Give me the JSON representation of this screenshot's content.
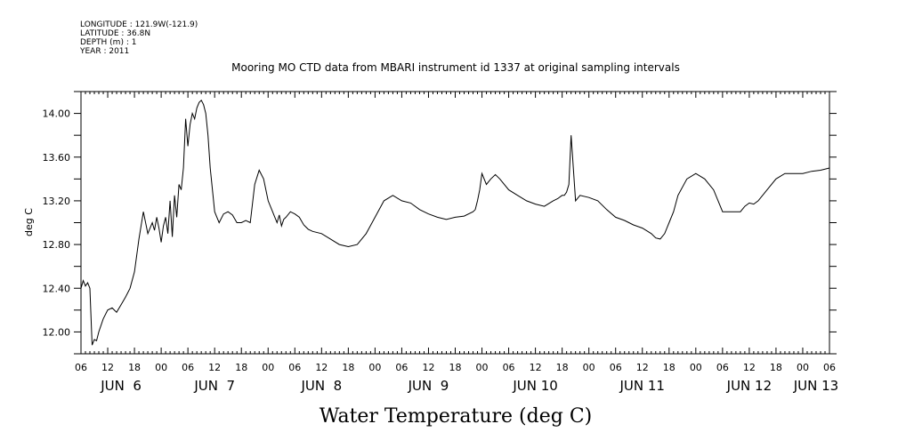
{
  "meta": {
    "longitude": "LONGITUDE : 121.9W(-121.9)",
    "latitude": "LATITUDE : 36.8N",
    "depth": "DEPTH (m) : 1",
    "year": "YEAR : 2011"
  },
  "chart_data": {
    "type": "line",
    "title": "Mooring MO CTD data from MBARI instrument id 1337 at original sampling intervals",
    "xlabel": "Water Temperature (deg C)",
    "ylabel": "deg C",
    "xlim_hours": [
      0,
      168
    ],
    "ylim": [
      11.8,
      14.2
    ],
    "yticks": [
      "12.00",
      "12.40",
      "12.80",
      "13.20",
      "13.60",
      "14.00"
    ],
    "ytick_values": [
      12.0,
      12.4,
      12.8,
      13.2,
      13.6,
      14.0
    ],
    "xtick_labels": [
      "06",
      "12",
      "18",
      "00",
      "06",
      "12",
      "18",
      "00",
      "06",
      "12",
      "18",
      "00",
      "06",
      "12",
      "18",
      "00",
      "06",
      "12",
      "18",
      "00",
      "06",
      "12",
      "18",
      "00",
      "06",
      "12",
      "18",
      "00",
      "06"
    ],
    "day_labels": [
      {
        "label": "JUN  6",
        "hour": 9
      },
      {
        "label": "JUN  7",
        "hour": 30
      },
      {
        "label": "JUN  8",
        "hour": 54
      },
      {
        "label": "JUN  9",
        "hour": 78
      },
      {
        "label": "JUN 10",
        "hour": 102
      },
      {
        "label": "JUN 11",
        "hour": 126
      },
      {
        "label": "JUN 12",
        "hour": 150
      },
      {
        "label": "JUN 13",
        "hour": 165
      }
    ],
    "series": [
      {
        "name": "Water Temperature",
        "x": [
          0,
          0.5,
          1,
          1.5,
          2,
          2.5,
          3,
          3.5,
          4,
          5,
          6,
          7,
          8,
          9,
          10,
          11,
          12,
          13,
          14,
          15,
          16,
          16.5,
          17,
          17.5,
          18,
          18.5,
          19,
          19.5,
          20,
          20.5,
          21,
          21.5,
          22,
          22.5,
          23,
          23.5,
          24,
          24.5,
          25,
          25.5,
          26,
          26.5,
          27,
          27.5,
          28,
          28.5,
          29,
          29.5,
          30,
          30.5,
          31,
          32,
          33,
          34,
          35,
          36,
          37,
          38,
          39,
          40,
          41,
          42,
          43,
          43.5,
          44,
          44.5,
          45,
          45.5,
          46,
          47,
          48,
          49,
          50,
          51,
          52,
          54,
          56,
          58,
          60,
          62,
          64,
          66,
          68,
          70,
          72,
          74,
          76,
          78,
          80,
          82,
          84,
          86,
          88,
          88.5,
          89,
          89.5,
          90,
          91,
          92,
          93,
          94,
          96,
          98,
          100,
          102,
          104,
          106,
          107,
          108,
          108.5,
          109,
          109.5,
          110,
          111,
          112,
          114,
          116,
          118,
          120,
          122,
          124,
          126,
          128,
          129,
          130,
          131,
          132,
          133,
          134,
          136,
          138,
          140,
          142,
          144,
          146,
          148,
          149,
          150,
          151,
          152,
          154,
          156,
          158,
          160,
          162,
          164,
          166,
          168
        ],
        "y": [
          12.4,
          12.47,
          12.42,
          12.45,
          12.4,
          11.88,
          11.93,
          11.92,
          12.0,
          12.12,
          12.2,
          12.22,
          12.18,
          12.25,
          12.32,
          12.4,
          12.55,
          12.85,
          13.1,
          12.9,
          13.0,
          12.93,
          13.05,
          12.95,
          12.82,
          12.97,
          13.05,
          12.9,
          13.2,
          12.87,
          13.25,
          13.05,
          13.35,
          13.3,
          13.5,
          13.95,
          13.7,
          13.9,
          14.0,
          13.95,
          14.05,
          14.1,
          14.12,
          14.08,
          14.0,
          13.8,
          13.5,
          13.3,
          13.1,
          13.05,
          13.0,
          13.08,
          13.1,
          13.07,
          13.0,
          13.0,
          13.02,
          13.0,
          13.35,
          13.48,
          13.4,
          13.2,
          13.1,
          13.05,
          13.0,
          13.07,
          12.97,
          13.03,
          13.05,
          13.1,
          13.08,
          13.05,
          12.98,
          12.94,
          12.92,
          12.9,
          12.85,
          12.8,
          12.78,
          12.8,
          12.9,
          13.05,
          13.2,
          13.25,
          13.2,
          13.18,
          13.12,
          13.08,
          13.05,
          13.03,
          13.05,
          13.06,
          13.1,
          13.12,
          13.2,
          13.3,
          13.45,
          13.35,
          13.4,
          13.44,
          13.4,
          13.3,
          13.25,
          13.2,
          13.17,
          13.15,
          13.2,
          13.22,
          13.25,
          13.25,
          13.28,
          13.35,
          13.8,
          13.2,
          13.25,
          13.23,
          13.2,
          13.12,
          13.05,
          13.02,
          12.98,
          12.95,
          12.9,
          12.86,
          12.85,
          12.9,
          13.0,
          13.1,
          13.25,
          13.4,
          13.45,
          13.4,
          13.3,
          13.1,
          13.1,
          13.1,
          13.15,
          13.18,
          13.17,
          13.2,
          13.3,
          13.4,
          13.45,
          13.45,
          13.45,
          13.47,
          13.48,
          13.5
        ]
      }
    ]
  }
}
